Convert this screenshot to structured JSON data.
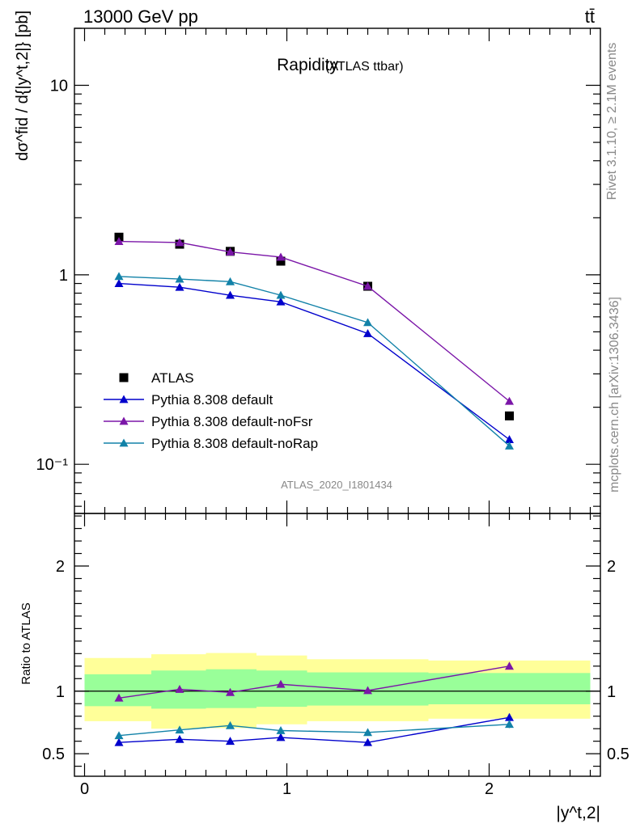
{
  "header": {
    "left": "13000 GeV pp",
    "right": "tt̄"
  },
  "side": {
    "rivet": "Rivet 3.1.10, ≥ 2.1M events",
    "source": "mcplots.cern.ch [arXiv:1306.3436]"
  },
  "chart_data": [
    {
      "type": "line",
      "title": "Rapidity",
      "subtitle": "(ATLAS ttbar)",
      "analysis_id": "ATLAS_2020_I1801434",
      "ylabel": "dσ^fid / d{|y^t,2|} [pb]",
      "yscale": "log",
      "ylim": [
        0.055,
        20
      ],
      "xlim": [
        -0.05,
        2.55
      ],
      "y_tick_labels": [
        "10⁻¹",
        "1",
        "10"
      ],
      "legend_position": "lower-left",
      "bin_edges": [
        0,
        0.33,
        0.6,
        0.85,
        1.1,
        1.7,
        2.5
      ],
      "x": [
        0.17,
        0.47,
        0.72,
        0.97,
        1.4,
        2.1
      ],
      "series": [
        {
          "name": "ATLAS",
          "marker": "square",
          "color": "#000000",
          "values": [
            1.58,
            1.45,
            1.33,
            1.18,
            0.87,
            0.18
          ]
        },
        {
          "name": "Pythia 8.308 default",
          "marker": "triangle",
          "color": "#0000cc",
          "values": [
            0.9,
            0.86,
            0.78,
            0.72,
            0.49,
            0.135
          ]
        },
        {
          "name": "Pythia 8.308 default-noFsr",
          "marker": "triangle",
          "color": "#7b16a8",
          "values": [
            1.5,
            1.48,
            1.32,
            1.24,
            0.87,
            0.215
          ]
        },
        {
          "name": "Pythia 8.308 default-noRap",
          "marker": "triangle",
          "color": "#1282a8",
          "values": [
            0.98,
            0.95,
            0.92,
            0.78,
            0.56,
            0.125
          ]
        }
      ]
    },
    {
      "type": "line",
      "ylabel": "Ratio to ATLAS",
      "xlabel": "|y^t,2|",
      "ylim": [
        0.32,
        2.42
      ],
      "xlim": [
        -0.05,
        2.55
      ],
      "x_tick_labels": [
        "0",
        "1",
        "2"
      ],
      "y_tick_labels": [
        "0.5",
        "1",
        "2"
      ],
      "reference": 1,
      "bands": {
        "edges": [
          0,
          0.33,
          0.6,
          0.85,
          1.1,
          1.7,
          2.5
        ],
        "inner_lo": [
          0.88,
          0.86,
          0.865,
          0.875,
          0.885,
          0.895
        ],
        "inner_hi": [
          1.135,
          1.165,
          1.175,
          1.165,
          1.15,
          1.145
        ],
        "outer_lo": [
          0.76,
          0.7,
          0.705,
          0.735,
          0.76,
          0.78
        ],
        "outer_hi": [
          1.265,
          1.295,
          1.305,
          1.285,
          1.255,
          1.245
        ],
        "inner_color": "#99ff99",
        "outer_color": "#ffff99"
      },
      "x": [
        0.17,
        0.47,
        0.72,
        0.97,
        1.4,
        2.1
      ],
      "series": [
        {
          "name": "Pythia 8.308 default",
          "color": "#0000cc",
          "values": [
            0.59,
            0.615,
            0.6,
            0.63,
            0.59,
            0.79
          ],
          "errors": [
            0.015,
            0.015,
            0.02,
            0.015,
            0.015,
            0.03
          ]
        },
        {
          "name": "Pythia 8.308 default-noFsr",
          "color": "#7b16a8",
          "values": [
            0.945,
            1.015,
            0.99,
            1.055,
            1.005,
            1.2
          ],
          "errors": [
            0.012,
            0.012,
            0.015,
            0.015,
            0.012,
            0.025
          ]
        },
        {
          "name": "Pythia 8.308 default-noRap",
          "color": "#1282a8",
          "values": [
            0.645,
            0.69,
            0.725,
            0.685,
            0.67,
            0.735
          ],
          "errors": [
            0.015,
            0.015,
            0.015,
            0.02,
            0.015,
            0.03
          ]
        }
      ]
    }
  ]
}
